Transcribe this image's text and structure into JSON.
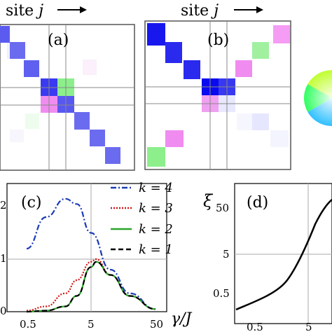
{
  "figure": {
    "site_label_a": "site",
    "site_label_b": "site",
    "site_var": "j",
    "panel_a_label": "(a)",
    "panel_b_label": "(b)",
    "panel_c_label": "(c)",
    "panel_d_label": "(d)",
    "x_axis_label_c": "γ/J",
    "y_axis_label_d": "ξ",
    "legend": [
      {
        "label": "k = 4",
        "color": "#1a3bb5",
        "style": "dash-dot"
      },
      {
        "label": "k = 3",
        "color": "#d01818",
        "style": "dotted"
      },
      {
        "label": "k = 2",
        "color": "#2aa52a",
        "style": "solid"
      },
      {
        "label": "k = 1",
        "color": "#000000",
        "style": "dashed"
      }
    ],
    "colors": {
      "blue_strong": "#3a3af0",
      "blue_light": "#6b6bf0",
      "green": "#9ef0a0",
      "pink": "#f08cf0"
    }
  },
  "chart_data": [
    {
      "type": "line",
      "panel": "c",
      "xlabel": "γ/J",
      "x_scale": "log",
      "x_ticks": [
        "0.5",
        "5",
        "50"
      ],
      "y_ticks": [
        "0",
        "1",
        "2"
      ],
      "series": [
        {
          "name": "k = 4",
          "x": [
            0.2,
            0.5,
            1,
            2,
            3,
            5,
            10,
            20,
            50
          ],
          "y": [
            0.6,
            1.2,
            1.8,
            2.15,
            2.05,
            1.5,
            0.8,
            0.35,
            0.05
          ]
        },
        {
          "name": "k = 3",
          "x": [
            0.2,
            0.5,
            1,
            2,
            3,
            5,
            6,
            10,
            20,
            50
          ],
          "y": [
            0.0,
            0.02,
            0.1,
            0.35,
            0.6,
            0.95,
            1.0,
            0.7,
            0.3,
            0.05
          ]
        },
        {
          "name": "k = 2",
          "x": [
            0.2,
            0.5,
            1,
            2,
            3,
            5,
            6,
            10,
            20,
            50
          ],
          "y": [
            0.0,
            0.0,
            0.02,
            0.1,
            0.3,
            0.85,
            0.95,
            0.7,
            0.3,
            0.05
          ]
        },
        {
          "name": "k = 1",
          "x": [
            0.2,
            0.5,
            1,
            2,
            3,
            5,
            6,
            10,
            20,
            50
          ],
          "y": [
            0.0,
            0.0,
            0.02,
            0.1,
            0.3,
            0.85,
            0.95,
            0.7,
            0.3,
            0.05
          ]
        }
      ]
    },
    {
      "type": "line",
      "panel": "d",
      "ylabel": "ξ",
      "x_scale": "log",
      "y_scale": "log",
      "x_ticks": [
        "0.5",
        "5"
      ],
      "y_ticks": [
        "0.5",
        "5",
        "50"
      ],
      "series": [
        {
          "x": [
            0.2,
            0.5,
            1,
            2,
            3,
            5,
            8,
            12
          ],
          "y": [
            0.22,
            0.35,
            0.5,
            0.8,
            1.4,
            4.5,
            20,
            60
          ]
        }
      ]
    }
  ]
}
